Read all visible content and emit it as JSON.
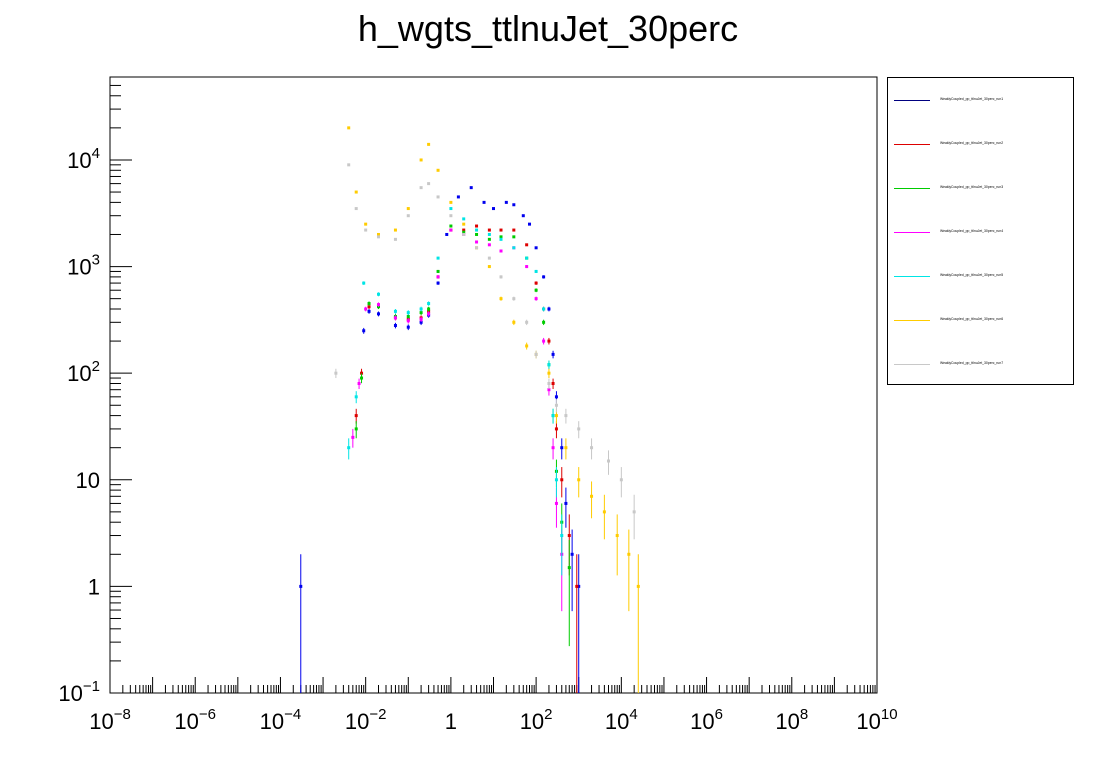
{
  "chart_data": {
    "type": "scatter",
    "title": "h_wgts_ttlnuJet_30perc",
    "xlabel": "",
    "ylabel": "",
    "x_scale": "log",
    "y_scale": "log",
    "xlim": [
      1e-08,
      10000000000.0
    ],
    "ylim": [
      0.1,
      60000
    ],
    "grid": false,
    "legend_position": "right",
    "x_ticks": [
      {
        "value": 1e-08,
        "base": "10",
        "exp": "−8"
      },
      {
        "value": 1e-06,
        "base": "10",
        "exp": "−6"
      },
      {
        "value": 0.0001,
        "base": "10",
        "exp": "−4"
      },
      {
        "value": 0.01,
        "base": "10",
        "exp": "−2"
      },
      {
        "value": 1,
        "base": "1",
        "exp": ""
      },
      {
        "value": 100.0,
        "base": "10",
        "exp": "2"
      },
      {
        "value": 10000.0,
        "base": "10",
        "exp": "4"
      },
      {
        "value": 1000000.0,
        "base": "10",
        "exp": "6"
      },
      {
        "value": 100000000.0,
        "base": "10",
        "exp": "8"
      },
      {
        "value": 10000000000.0,
        "base": "10",
        "exp": "10"
      }
    ],
    "y_ticks": [
      {
        "value": 0.1,
        "base": "10",
        "exp": "−1"
      },
      {
        "value": 1,
        "base": "1",
        "exp": ""
      },
      {
        "value": 10,
        "base": "10",
        "exp": ""
      },
      {
        "value": 100,
        "base": "10",
        "exp": "2"
      },
      {
        "value": 1000,
        "base": "10",
        "exp": "3"
      },
      {
        "value": 10000,
        "base": "10",
        "exp": "4"
      }
    ],
    "series": [
      {
        "name": "",
        "color": "#0000ee",
        "points": [
          [
            0.0003,
            1
          ],
          [
            0.009,
            250
          ],
          [
            0.012,
            380
          ],
          [
            0.02,
            360
          ],
          [
            0.05,
            280
          ],
          [
            0.1,
            270
          ],
          [
            0.2,
            300
          ],
          [
            0.3,
            350
          ],
          [
            0.5,
            700
          ],
          [
            0.8,
            2000
          ],
          [
            1.5,
            4500
          ],
          [
            3,
            5500
          ],
          [
            6,
            4000
          ],
          [
            10,
            3500
          ],
          [
            20,
            4000
          ],
          [
            30,
            3800
          ],
          [
            50,
            3000
          ],
          [
            70,
            2500
          ],
          [
            100,
            1500
          ],
          [
            150,
            800
          ],
          [
            200,
            400
          ],
          [
            250,
            150
          ],
          [
            300,
            60
          ],
          [
            400,
            20
          ],
          [
            500,
            6
          ],
          [
            700,
            2
          ],
          [
            1000,
            1
          ]
        ]
      },
      {
        "name": "",
        "color": "#dd0000",
        "points": [
          [
            0.006,
            40
          ],
          [
            0.008,
            100
          ],
          [
            0.012,
            420
          ],
          [
            0.02,
            430
          ],
          [
            0.05,
            330
          ],
          [
            0.1,
            320
          ],
          [
            0.2,
            330
          ],
          [
            0.3,
            380
          ],
          [
            0.5,
            800
          ],
          [
            1,
            2200
          ],
          [
            2,
            2200
          ],
          [
            4,
            2400
          ],
          [
            8,
            2200
          ],
          [
            15,
            2200
          ],
          [
            30,
            2200
          ],
          [
            60,
            1600
          ],
          [
            100,
            700
          ],
          [
            150,
            400
          ],
          [
            200,
            200
          ],
          [
            250,
            80
          ],
          [
            300,
            30
          ],
          [
            400,
            10
          ],
          [
            600,
            3
          ],
          [
            900,
            1
          ]
        ]
      },
      {
        "name": "",
        "color": "#00cc00",
        "points": [
          [
            0.006,
            30
          ],
          [
            0.008,
            90
          ],
          [
            0.012,
            450
          ],
          [
            0.02,
            420
          ],
          [
            0.05,
            340
          ],
          [
            0.1,
            340
          ],
          [
            0.2,
            370
          ],
          [
            0.3,
            400
          ],
          [
            0.5,
            900
          ],
          [
            1,
            2400
          ],
          [
            2,
            2100
          ],
          [
            4,
            2000
          ],
          [
            8,
            1800
          ],
          [
            15,
            1900
          ],
          [
            30,
            1900
          ],
          [
            60,
            1200
          ],
          [
            100,
            600
          ],
          [
            150,
            300
          ],
          [
            200,
            120
          ],
          [
            250,
            40
          ],
          [
            300,
            12
          ],
          [
            400,
            4
          ],
          [
            600,
            1.5
          ]
        ]
      },
      {
        "name": "",
        "color": "#ff00ff",
        "points": [
          [
            0.005,
            25
          ],
          [
            0.007,
            80
          ],
          [
            0.01,
            400
          ],
          [
            0.02,
            440
          ],
          [
            0.05,
            330
          ],
          [
            0.1,
            310
          ],
          [
            0.2,
            320
          ],
          [
            0.3,
            360
          ],
          [
            0.5,
            800
          ],
          [
            1,
            2200
          ],
          [
            2,
            2000
          ],
          [
            4,
            1700
          ],
          [
            8,
            1600
          ],
          [
            15,
            1400
          ],
          [
            30,
            1500
          ],
          [
            60,
            1000
          ],
          [
            100,
            500
          ],
          [
            150,
            200
          ],
          [
            200,
            70
          ],
          [
            250,
            20
          ],
          [
            300,
            6
          ],
          [
            400,
            2
          ]
        ]
      },
      {
        "name": "",
        "color": "#00e5e5",
        "points": [
          [
            0.004,
            20
          ],
          [
            0.006,
            60
          ],
          [
            0.009,
            700
          ],
          [
            0.02,
            550
          ],
          [
            0.05,
            380
          ],
          [
            0.1,
            370
          ],
          [
            0.2,
            400
          ],
          [
            0.3,
            450
          ],
          [
            0.5,
            1200
          ],
          [
            1,
            3500
          ],
          [
            2,
            2800
          ],
          [
            4,
            2200
          ],
          [
            8,
            2000
          ],
          [
            15,
            1800
          ],
          [
            30,
            1500
          ],
          [
            60,
            1200
          ],
          [
            100,
            900
          ],
          [
            150,
            400
          ],
          [
            200,
            120
          ],
          [
            250,
            40
          ],
          [
            300,
            10
          ],
          [
            400,
            3
          ]
        ]
      },
      {
        "name": "",
        "color": "#ffcc00",
        "points": [
          [
            0.004,
            20000
          ],
          [
            0.006,
            5000
          ],
          [
            0.01,
            2500
          ],
          [
            0.02,
            2000
          ],
          [
            0.05,
            2200
          ],
          [
            0.1,
            3500
          ],
          [
            0.2,
            10000
          ],
          [
            0.3,
            14000
          ],
          [
            0.5,
            8000
          ],
          [
            1,
            4000
          ],
          [
            2,
            2500
          ],
          [
            4,
            1500
          ],
          [
            8,
            1000
          ],
          [
            15,
            500
          ],
          [
            30,
            300
          ],
          [
            60,
            180
          ],
          [
            100,
            150
          ],
          [
            200,
            100
          ],
          [
            300,
            40
          ],
          [
            500,
            20
          ],
          [
            1000,
            10
          ],
          [
            2000,
            7
          ],
          [
            4000,
            5
          ],
          [
            8000,
            3
          ],
          [
            15000,
            2
          ],
          [
            25000,
            1
          ]
        ]
      },
      {
        "name": "",
        "color": "#c8c8c8",
        "points": [
          [
            0.002,
            100
          ],
          [
            0.004,
            9000
          ],
          [
            0.006,
            3500
          ],
          [
            0.01,
            2200
          ],
          [
            0.02,
            1900
          ],
          [
            0.05,
            1800
          ],
          [
            0.1,
            3000
          ],
          [
            0.2,
            5500
          ],
          [
            0.3,
            6000
          ],
          [
            0.5,
            4500
          ],
          [
            1,
            3000
          ],
          [
            2,
            2000
          ],
          [
            4,
            1500
          ],
          [
            8,
            1200
          ],
          [
            15,
            800
          ],
          [
            30,
            500
          ],
          [
            60,
            300
          ],
          [
            100,
            150
          ],
          [
            200,
            80
          ],
          [
            300,
            50
          ],
          [
            500,
            40
          ],
          [
            1000,
            30
          ],
          [
            2000,
            20
          ],
          [
            5000,
            15
          ],
          [
            10000,
            10
          ],
          [
            20000,
            5
          ]
        ]
      }
    ],
    "legend": [
      {
        "label": "WeaklyCoupled_pp_ttlnuJet_30perc_run1",
        "color": "#000080"
      },
      {
        "label": "WeaklyCoupled_pp_ttlnuJet_30perc_run2",
        "color": "#dd0000"
      },
      {
        "label": "WeaklyCoupled_pp_ttlnuJet_30perc_run3",
        "color": "#00cc00"
      },
      {
        "label": "WeaklyCoupled_pp_ttlnuJet_30perc_run4",
        "color": "#ff00ff"
      },
      {
        "label": "WeaklyCoupled_pp_ttlnuJet_30perc_run5",
        "color": "#00e5e5"
      },
      {
        "label": "WeaklyCoupled_pp_ttlnuJet_30perc_run6",
        "color": "#ffcc00"
      },
      {
        "label": "WeaklyCoupled_pp_ttlnuJet_30perc_run7",
        "color": "#c8c8c8"
      }
    ]
  }
}
